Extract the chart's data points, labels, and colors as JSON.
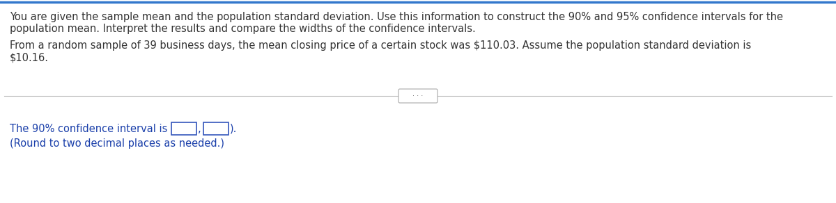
{
  "background_color": "#ffffff",
  "top_text_line1": "You are given the sample mean and the population standard deviation. Use this information to construct the 90% and 95% confidence intervals for the",
  "top_text_line2": "population mean. Interpret the results and compare the widths of the confidence intervals.",
  "mid_text_line1": "From a random sample of 39 business days, the mean closing price of a certain stock was $110.03. Assume the population standard deviation is",
  "mid_text_line2": "$10.16.",
  "dots_text": "· · ·",
  "bottom_text_before_boxes": "The 90% confidence interval is (",
  "bottom_text_comma": ",",
  "bottom_text_end": ").",
  "bottom_note": "(Round to two decimal places as needed.)",
  "main_font_size": 10.5,
  "note_font_size": 10.5,
  "text_color": "#333333",
  "blue_color": "#1a3faa",
  "box_edge_color": "#3355bb",
  "line_color": "#bbbbbb",
  "dots_btn_edge": "#aaaaaa"
}
